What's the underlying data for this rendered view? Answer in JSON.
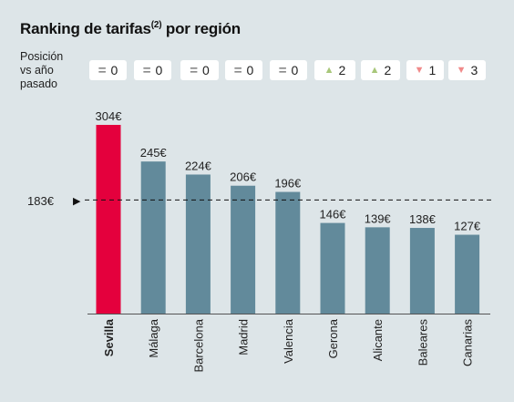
{
  "title": "Ranking de tarifas",
  "title_sup": "(2)",
  "title_suffix": " por región",
  "position_label": [
    "Posición",
    "vs año",
    "pasado"
  ],
  "reference": {
    "value": 183,
    "label": "183€"
  },
  "colors": {
    "highlight": "#e4003d",
    "bar": "#628a9b",
    "up": "#a8c77a",
    "down": "#f08a8a",
    "equal": "#8a8a8a"
  },
  "chart_data": {
    "type": "bar",
    "title": "Ranking de tarifas(2) por región",
    "categories": [
      "Sevilla",
      "Málaga",
      "Barcelona",
      "Madrid",
      "Valencia",
      "Gerona",
      "Alicante",
      "Baleares",
      "Canarias"
    ],
    "values": [
      304,
      245,
      224,
      206,
      196,
      146,
      139,
      138,
      127
    ],
    "value_labels": [
      "304€",
      "245€",
      "224€",
      "206€",
      "196€",
      "146€",
      "139€",
      "138€",
      "127€"
    ],
    "highlight_index": 0,
    "reference_line": 183,
    "ylim": [
      0,
      304
    ],
    "grid": false,
    "position_change": [
      {
        "icon": "equal-icon",
        "value": "0"
      },
      {
        "icon": "equal-icon",
        "value": "0"
      },
      {
        "icon": "equal-icon",
        "value": "0"
      },
      {
        "icon": "equal-icon",
        "value": "0"
      },
      {
        "icon": "equal-icon",
        "value": "0"
      },
      {
        "icon": "triangle-up-icon",
        "value": "2"
      },
      {
        "icon": "triangle-up-icon",
        "value": "2"
      },
      {
        "icon": "triangle-down-icon",
        "value": "1"
      },
      {
        "icon": "triangle-down-icon",
        "value": "3"
      }
    ]
  }
}
